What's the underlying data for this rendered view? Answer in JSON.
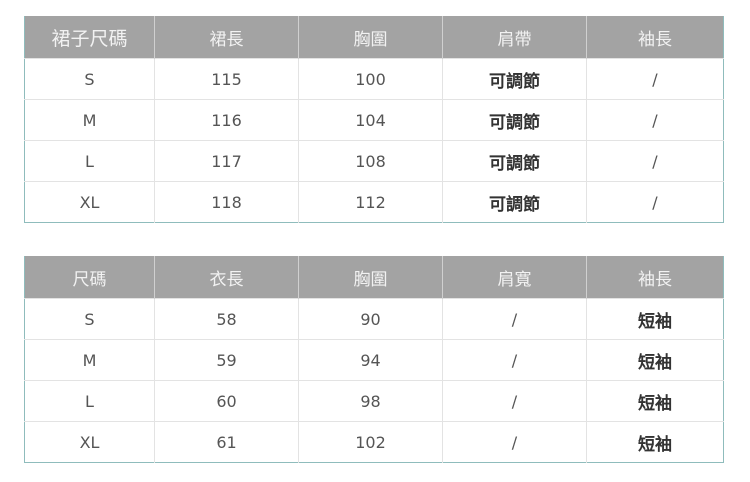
{
  "skirt_table": {
    "headers": [
      "裙子尺碼",
      "裙長",
      "胸圍",
      "肩帶",
      "袖長"
    ],
    "rows": [
      [
        "S",
        "115",
        "100",
        "可調節",
        "/"
      ],
      [
        "M",
        "116",
        "104",
        "可調節",
        "/"
      ],
      [
        "L",
        "117",
        "108",
        "可調節",
        "/"
      ],
      [
        "XL",
        "118",
        "112",
        "可調節",
        "/"
      ]
    ]
  },
  "top_table": {
    "headers": [
      "尺碼",
      "衣長",
      "胸圍",
      "肩寬",
      "袖長"
    ],
    "rows": [
      [
        "S",
        "58",
        "90",
        "/",
        "短袖"
      ],
      [
        "M",
        "59",
        "94",
        "/",
        "短袖"
      ],
      [
        "L",
        "60",
        "98",
        "/",
        "短袖"
      ],
      [
        "XL",
        "61",
        "102",
        "/",
        "短袖"
      ]
    ]
  }
}
